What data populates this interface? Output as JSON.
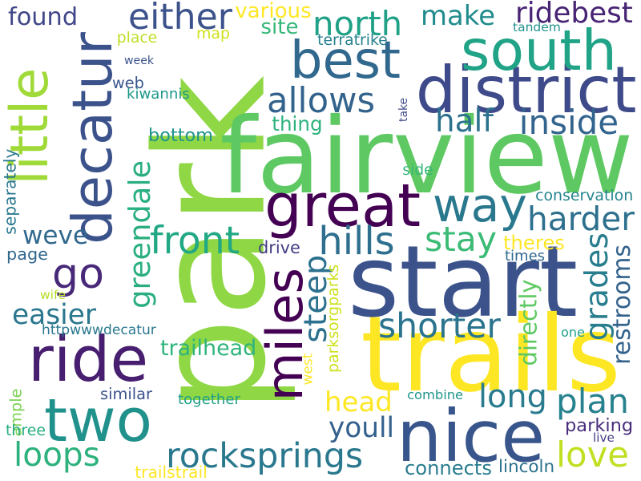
{
  "words": [
    {
      "text": "park",
      "color": "#8fd744",
      "rotated": true
    },
    {
      "text": "fairview",
      "color": "#5ec962",
      "rotated": false
    },
    {
      "text": "start",
      "color": "#3b528b",
      "rotated": false
    },
    {
      "text": "trails",
      "color": "#fde725",
      "rotated": false
    },
    {
      "text": "nice",
      "color": "#39568c",
      "rotated": false
    },
    {
      "text": "two",
      "color": "#21918c",
      "rotated": false
    },
    {
      "text": "ride",
      "color": "#481f70",
      "rotated": false
    },
    {
      "text": "district",
      "color": "#3e4a89",
      "rotated": false
    },
    {
      "text": "great",
      "color": "#440154",
      "rotated": false
    },
    {
      "text": "way",
      "color": "#2a788e",
      "rotated": false
    },
    {
      "text": "south",
      "color": "#20a386",
      "rotated": false
    },
    {
      "text": "best",
      "color": "#31688e",
      "rotated": false
    },
    {
      "text": "decatur",
      "color": "#3b528b",
      "rotated": true
    },
    {
      "text": "little",
      "color": "#a0da39",
      "rotated": true
    },
    {
      "text": "go",
      "color": "#482878",
      "rotated": false
    },
    {
      "text": "miles",
      "color": "#440154",
      "rotated": true
    },
    {
      "text": "greendale",
      "color": "#29af7f",
      "rotated": true
    },
    {
      "text": "north",
      "color": "#1fa187",
      "rotated": false
    },
    {
      "text": "either",
      "color": "#3b528b",
      "rotated": false
    },
    {
      "text": "make",
      "color": "#228c8d",
      "rotated": false
    },
    {
      "text": "ridebest",
      "color": "#482475",
      "rotated": false
    },
    {
      "text": "allows",
      "color": "#33638d",
      "rotated": false
    },
    {
      "text": "half",
      "color": "#2c728e",
      "rotated": false
    },
    {
      "text": "inside",
      "color": "#32648e",
      "rotated": false
    },
    {
      "text": "harder",
      "color": "#2d708e",
      "rotated": false
    },
    {
      "text": "hills",
      "color": "#2e6e8e",
      "rotated": false
    },
    {
      "text": "front",
      "color": "#22a884",
      "rotated": false
    },
    {
      "text": "stay",
      "color": "#3cbb75",
      "rotated": false
    },
    {
      "text": "weve",
      "color": "#31688e",
      "rotated": false
    },
    {
      "text": "steep",
      "color": "#2c718e",
      "rotated": true
    },
    {
      "text": "grades",
      "color": "#287d8e",
      "rotated": true
    },
    {
      "text": "restrooms",
      "color": "#33628d",
      "rotated": true
    },
    {
      "text": "easier",
      "color": "#2a778e",
      "rotated": false
    },
    {
      "text": "shorter",
      "color": "#2b748e",
      "rotated": false
    },
    {
      "text": "head",
      "color": "#fde725",
      "rotated": false
    },
    {
      "text": "long",
      "color": "#297b8e",
      "rotated": false
    },
    {
      "text": "plan",
      "color": "#26828e",
      "rotated": false
    },
    {
      "text": "love",
      "color": "#c2df23",
      "rotated": false
    },
    {
      "text": "youll",
      "color": "#34618d",
      "rotated": false
    },
    {
      "text": "rocksprings",
      "color": "#2a788e",
      "rotated": false
    },
    {
      "text": "loops",
      "color": "#2db27d",
      "rotated": false
    },
    {
      "text": "found",
      "color": "#404688",
      "rotated": false
    },
    {
      "text": "ample",
      "color": "#7ad151",
      "rotated": true
    },
    {
      "text": "various",
      "color": "#fde725",
      "rotated": false
    },
    {
      "text": "map",
      "color": "#d0e11c",
      "rotated": false
    },
    {
      "text": "site",
      "color": "#35b779",
      "rotated": false
    },
    {
      "text": "terratrike",
      "color": "#26818e",
      "rotated": false
    },
    {
      "text": "tandem",
      "color": "#21918c",
      "rotated": false
    },
    {
      "text": "place",
      "color": "#bddf26",
      "rotated": false
    },
    {
      "text": "week",
      "color": "#3b528b",
      "rotated": false
    },
    {
      "text": "web",
      "color": "#39568c",
      "rotated": false
    },
    {
      "text": "kiwannis",
      "color": "#1f988b",
      "rotated": false
    },
    {
      "text": "take",
      "color": "#3e4989",
      "rotated": true
    },
    {
      "text": "thing",
      "color": "#2db27d",
      "rotated": false
    },
    {
      "text": "bottom",
      "color": "#1f958b",
      "rotated": false
    },
    {
      "text": "separately",
      "color": "#2a788e",
      "rotated": true
    },
    {
      "text": "side",
      "color": "#35b779",
      "rotated": false
    },
    {
      "text": "conservation",
      "color": "#25838e",
      "rotated": false
    },
    {
      "text": "page",
      "color": "#31688e",
      "rotated": false
    },
    {
      "text": "theres",
      "color": "#fde725",
      "rotated": false
    },
    {
      "text": "drive",
      "color": "#433e85",
      "rotated": false
    },
    {
      "text": "times",
      "color": "#30698e",
      "rotated": false
    },
    {
      "text": "wife",
      "color": "#b5de2b",
      "rotated": false
    },
    {
      "text": "parksorgparks",
      "color": "#cde11d",
      "rotated": true
    },
    {
      "text": "directly",
      "color": "#5ec962",
      "rotated": true
    },
    {
      "text": "httpwwwdecatur",
      "color": "#2a788e",
      "rotated": false
    },
    {
      "text": "west",
      "color": "#fde725",
      "rotated": true
    },
    {
      "text": "one",
      "color": "#1fa187",
      "rotated": false
    },
    {
      "text": "trailhead",
      "color": "#2fb47c",
      "rotated": false
    },
    {
      "text": "similar",
      "color": "#3b528b",
      "rotated": false
    },
    {
      "text": "together",
      "color": "#1fa088",
      "rotated": false
    },
    {
      "text": "combine",
      "color": "#1f968b",
      "rotated": false
    },
    {
      "text": "parking",
      "color": "#472d7b",
      "rotated": false
    },
    {
      "text": "three",
      "color": "#27ad81",
      "rotated": false
    },
    {
      "text": "live",
      "color": "#433e85",
      "rotated": false
    },
    {
      "text": "connects",
      "color": "#287c8e",
      "rotated": false
    },
    {
      "text": "lincoln",
      "color": "#2c728e",
      "rotated": false
    },
    {
      "text": "trailstrail",
      "color": "#fde725",
      "rotated": false
    }
  ]
}
